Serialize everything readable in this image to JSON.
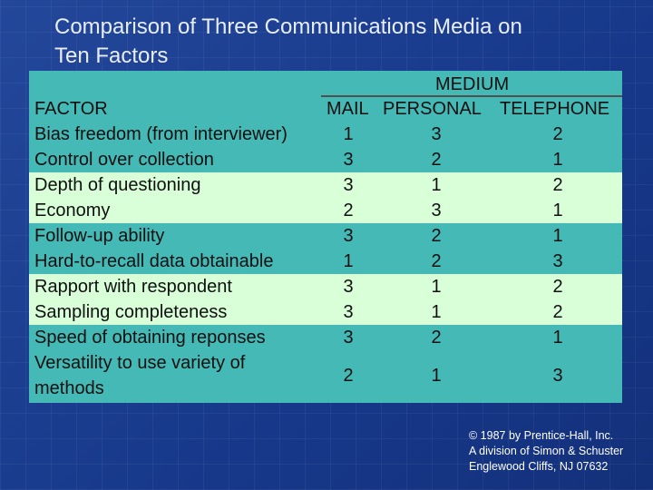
{
  "slide": {
    "title_line1": "Comparison of Three Communications Media on",
    "title_line2": "Ten Factors"
  },
  "table": {
    "group_header": "MEDIUM",
    "columns": {
      "factor": "FACTOR",
      "mail": "MAIL",
      "personal": "PERSONAL",
      "telephone": "TELEPHONE"
    },
    "rows": [
      {
        "factor": "Bias freedom (from interviewer)",
        "mail": "1",
        "personal": "3",
        "telephone": "2"
      },
      {
        "factor": "Control over collection",
        "mail": "3",
        "personal": "2",
        "telephone": "1"
      },
      {
        "factor": "Depth of questioning",
        "mail": "3",
        "personal": "1",
        "telephone": "2"
      },
      {
        "factor": "Economy",
        "mail": "2",
        "personal": "3",
        "telephone": "1"
      },
      {
        "factor": "Follow-up ability",
        "mail": "3",
        "personal": "2",
        "telephone": "1"
      },
      {
        "factor": "Hard-to-recall data obtainable",
        "mail": "1",
        "personal": "2",
        "telephone": "3"
      },
      {
        "factor": "Rapport with respondent",
        "mail": "3",
        "personal": "1",
        "telephone": "2"
      },
      {
        "factor": "Sampling completeness",
        "mail": "3",
        "personal": "1",
        "telephone": "2"
      },
      {
        "factor": "Speed of obtaining reponses",
        "mail": "3",
        "personal": "2",
        "telephone": "1"
      },
      {
        "factor_line1": "Versatility to use variety of",
        "factor_line2": "methods",
        "mail": "2",
        "personal": "1",
        "telephone": "3"
      }
    ],
    "colors": {
      "teal_band": "#44b9b6",
      "light_band": "#d9ffd9"
    }
  },
  "copyright": {
    "line1": "© 1987 by Prentice-Hall, Inc.",
    "line2": "A division of Simon & Schuster",
    "line3": "Englewood Cliffs, NJ 07632"
  }
}
